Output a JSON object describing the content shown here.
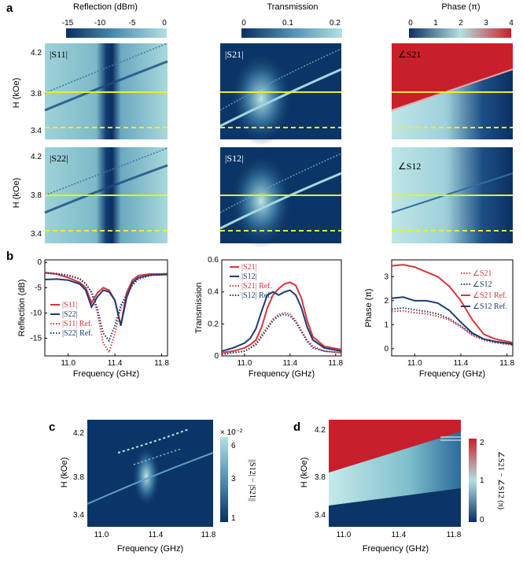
{
  "panels": {
    "a": "a",
    "b": "b",
    "c": "c",
    "d": "d"
  },
  "colorbars": [
    {
      "title": "Reflection (dBm)",
      "ticks": [
        "-15",
        "-10",
        "-5",
        "0"
      ]
    },
    {
      "title": "Transmission",
      "ticks": [
        "0",
        "0.1",
        "0.2"
      ]
    },
    {
      "title": "Phase (π)",
      "ticks": [
        "0",
        "1",
        "2",
        "3",
        "4"
      ]
    }
  ],
  "maps": {
    "ylabel": "H (kOe)",
    "yticks": [
      "4.2",
      "3.8",
      "3.4"
    ],
    "labels": [
      "|S11|",
      "|S21|",
      "∠S21",
      "|S22|",
      "|S12|",
      "∠S12"
    ],
    "colors": {
      "dark": "#0b3566",
      "light": "#a8d8dc",
      "red": "#c8202a",
      "line": "#f2ea2a"
    }
  },
  "chart_data": [
    {
      "type": "line",
      "title": "Reflection",
      "xlabel": "Frequency (GHz)",
      "ylabel": "Reflection (dB)",
      "xticks": [
        "11.0",
        "11.4",
        "11.8"
      ],
      "yticks": [
        "0",
        "-5",
        "-10",
        "-15"
      ],
      "xlim": [
        10.8,
        11.85
      ],
      "ylim": [
        -18.5,
        0.5
      ],
      "x": [
        10.8,
        10.9,
        11.0,
        11.1,
        11.15,
        11.2,
        11.25,
        11.3,
        11.35,
        11.4,
        11.45,
        11.5,
        11.55,
        11.6,
        11.7,
        11.85
      ],
      "series": [
        {
          "name": "|S11|",
          "color": "#d8363d",
          "dash": "solid",
          "values": [
            -2.0,
            -2.3,
            -3.0,
            -4.0,
            -5.0,
            -8.0,
            -6.0,
            -5.0,
            -5.5,
            -7.5,
            -12.5,
            -6.0,
            -3.5,
            -2.6,
            -2.3,
            -2.3
          ]
        },
        {
          "name": "|S22|",
          "color": "#1d3b70",
          "dash": "solid",
          "values": [
            -3.4,
            -3.3,
            -3.5,
            -4.3,
            -5.5,
            -8.8,
            -6.8,
            -5.5,
            -5.8,
            -7.5,
            -12.5,
            -7.0,
            -4.0,
            -3.0,
            -2.5,
            -2.4
          ]
        },
        {
          "name": "|S11| Ref.",
          "color": "#d8363d",
          "dash": "dot",
          "values": [
            -2.0,
            -2.2,
            -2.5,
            -3.2,
            -4.2,
            -6.0,
            -10.0,
            -16.0,
            -17.8,
            -14.0,
            -9.0,
            -6.5,
            -4.5,
            -3.2,
            -2.5,
            -2.2
          ]
        },
        {
          "name": "|S22| Ref.",
          "color": "#1d3b70",
          "dash": "dot",
          "values": [
            -2.1,
            -2.3,
            -2.6,
            -3.3,
            -4.3,
            -5.8,
            -9.2,
            -14.0,
            -15.5,
            -12.5,
            -8.5,
            -6.3,
            -4.5,
            -3.3,
            -2.6,
            -2.3
          ]
        }
      ]
    },
    {
      "type": "line",
      "title": "Transmission",
      "xlabel": "Frequency (GHz)",
      "ylabel": "Transmission",
      "xticks": [
        "11.0",
        "11.4",
        "11.8"
      ],
      "yticks": [
        "0",
        "0.2",
        "0.4",
        "0.6"
      ],
      "xlim": [
        10.8,
        11.85
      ],
      "ylim": [
        0,
        0.6
      ],
      "x": [
        10.8,
        10.9,
        11.0,
        11.05,
        11.1,
        11.15,
        11.2,
        11.25,
        11.3,
        11.35,
        11.4,
        11.45,
        11.5,
        11.55,
        11.6,
        11.7,
        11.85
      ],
      "series": [
        {
          "name": "|S21|",
          "color": "#d8363d",
          "dash": "solid",
          "values": [
            0.02,
            0.03,
            0.05,
            0.07,
            0.1,
            0.18,
            0.3,
            0.38,
            0.42,
            0.45,
            0.46,
            0.44,
            0.36,
            0.22,
            0.12,
            0.06,
            0.04
          ]
        },
        {
          "name": "|S12|",
          "color": "#1d3b70",
          "dash": "solid",
          "values": [
            0.03,
            0.05,
            0.08,
            0.11,
            0.17,
            0.28,
            0.38,
            0.4,
            0.38,
            0.4,
            0.41,
            0.38,
            0.3,
            0.18,
            0.1,
            0.05,
            0.03
          ]
        },
        {
          "name": "|S21| Ref.",
          "color": "#d8363d",
          "dash": "dot",
          "values": [
            0.01,
            0.02,
            0.03,
            0.05,
            0.08,
            0.13,
            0.18,
            0.23,
            0.26,
            0.27,
            0.26,
            0.22,
            0.16,
            0.1,
            0.06,
            0.03,
            0.02
          ]
        },
        {
          "name": "|S12| Ref.",
          "color": "#1d3b70",
          "dash": "dot",
          "values": [
            0.01,
            0.02,
            0.03,
            0.05,
            0.07,
            0.12,
            0.17,
            0.22,
            0.25,
            0.26,
            0.25,
            0.21,
            0.15,
            0.09,
            0.05,
            0.03,
            0.02
          ]
        }
      ]
    },
    {
      "type": "line",
      "title": "Phase",
      "xlabel": "Frequency (GHz)",
      "ylabel": "Phase (π)",
      "xticks": [
        "11.0",
        "11.4",
        "11.8"
      ],
      "yticks": [
        "0",
        "1",
        "2",
        "3"
      ],
      "xlim": [
        10.8,
        11.85
      ],
      "ylim": [
        -0.3,
        3.7
      ],
      "x": [
        10.8,
        10.9,
        11.0,
        11.1,
        11.2,
        11.3,
        11.4,
        11.5,
        11.6,
        11.7,
        11.85
      ],
      "series": [
        {
          "name": "∠S21",
          "color": "#d8363d",
          "dash": "dot",
          "values": [
            1.55,
            1.58,
            1.5,
            1.45,
            1.35,
            1.2,
            0.9,
            0.55,
            0.35,
            0.25,
            0.15
          ]
        },
        {
          "name": "∠S12",
          "color": "#1d3b70",
          "dash": "dot",
          "values": [
            1.65,
            1.7,
            1.62,
            1.55,
            1.45,
            1.25,
            0.95,
            0.6,
            0.4,
            0.28,
            0.18
          ]
        },
        {
          "name": "∠S21 Ref.",
          "color": "#d8363d",
          "dash": "solid",
          "values": [
            3.45,
            3.5,
            3.4,
            3.2,
            3.0,
            2.6,
            2.0,
            1.2,
            0.6,
            0.4,
            0.25
          ]
        },
        {
          "name": "∠S12 Ref.",
          "color": "#1d3b70",
          "dash": "solid",
          "values": [
            2.1,
            2.15,
            2.0,
            2.0,
            1.9,
            1.6,
            1.1,
            0.65,
            0.4,
            0.3,
            0.2
          ]
        }
      ]
    },
    {
      "type": "heatmap",
      "title": "||S12| − |S21||",
      "xlabel": "Frequency (GHz)",
      "ylabel": "H (kOe)",
      "xticks": [
        "11.0",
        "11.4",
        "11.8"
      ],
      "yticks": [
        "4.2",
        "3.8",
        "3.4"
      ],
      "colorbar_ticks": [
        "1",
        "3",
        "6"
      ],
      "colorbar_exponent": "× 10⁻²",
      "colorbar_label": "||S12| − |S21||"
    },
    {
      "type": "heatmap",
      "title": "∠S21 − ∠S12 (π)",
      "xlabel": "Frequency (GHz)",
      "ylabel": "H (kOe)",
      "xticks": [
        "11.0",
        "11.4",
        "11.8"
      ],
      "yticks": [
        "4.2",
        "3.8",
        "3.4"
      ],
      "colorbar_ticks": [
        "0",
        "1",
        "2"
      ],
      "colorbar_label": "∠S21 − ∠S12 (π)"
    }
  ]
}
